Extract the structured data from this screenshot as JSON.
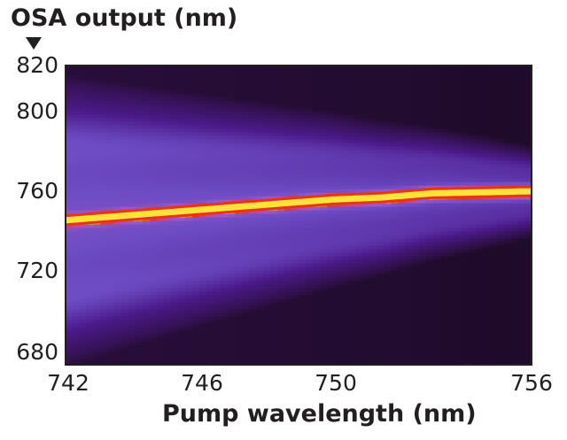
{
  "chart_data": {
    "type": "heatmap",
    "ylabel": "OSA output (nm)",
    "xlabel": "Pump wavelength (nm)",
    "xlim": [
      742,
      756
    ],
    "ylim": [
      675,
      820
    ],
    "x_ticks": [
      "742",
      "746",
      "750",
      "756"
    ],
    "y_ticks": [
      "820",
      "800",
      "760",
      "720",
      "680"
    ],
    "colormap": [
      "#150818",
      "#2e0f45",
      "#4b1a8a",
      "#6d4cc4",
      "#9a58c8",
      "#c3469a",
      "#e5341a",
      "#f7a010",
      "#ffe23a"
    ],
    "ridge": {
      "description_label": "",
      "x": [
        742,
        744,
        746,
        748,
        750,
        751.5,
        753,
        756
      ],
      "y": [
        745,
        747.5,
        750,
        752.5,
        755,
        756,
        758,
        759
      ]
    },
    "background_level": 0.05,
    "sideband_half_width_at_742": 70,
    "sideband_half_width_at_756": 22
  }
}
